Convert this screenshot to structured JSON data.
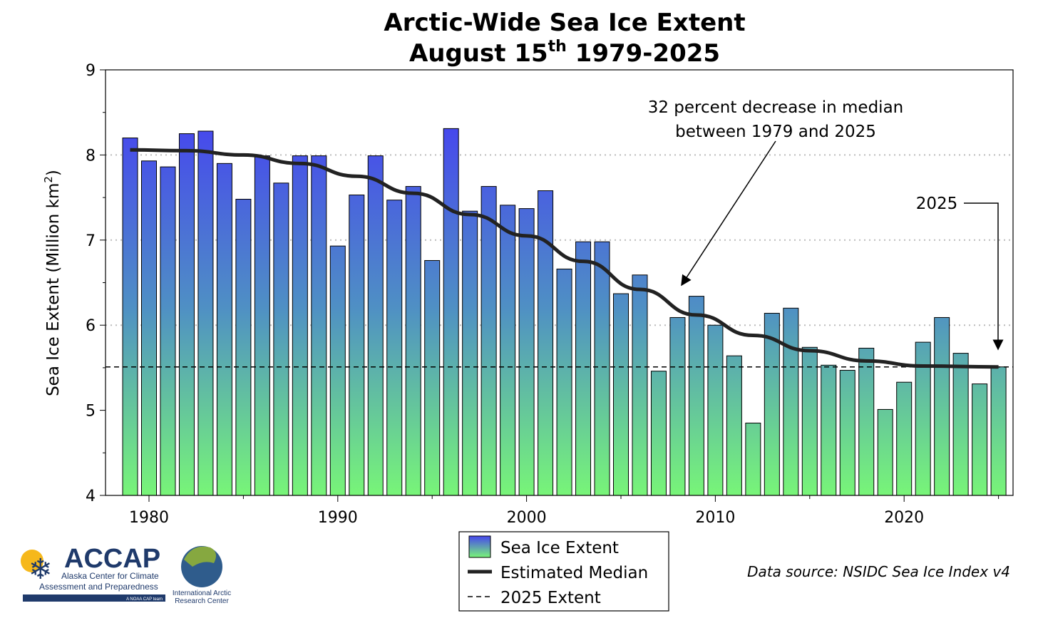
{
  "chart_data": {
    "type": "bar",
    "title": "Arctic-Wide Sea Ice Extent",
    "subtitle_prefix": "August 15",
    "subtitle_sup": "th",
    "subtitle_suffix": " 1979-2025",
    "ylabel": "Sea Ice Extent (Million km",
    "ylabel_sup": "2",
    "ylabel_end": ")",
    "ylim": [
      4,
      9
    ],
    "xlim": [
      1978,
      2026
    ],
    "yticks": [
      "4",
      "5",
      "6",
      "7",
      "8",
      "9"
    ],
    "xticks": [
      "1980",
      "1990",
      "2000",
      "2010",
      "2020"
    ],
    "x": [
      1979,
      1980,
      1981,
      1982,
      1983,
      1984,
      1985,
      1986,
      1987,
      1988,
      1989,
      1990,
      1991,
      1992,
      1993,
      1994,
      1995,
      1996,
      1997,
      1998,
      1999,
      2000,
      2001,
      2002,
      2003,
      2004,
      2005,
      2006,
      2007,
      2008,
      2009,
      2010,
      2011,
      2012,
      2013,
      2014,
      2015,
      2016,
      2017,
      2018,
      2019,
      2020,
      2021,
      2022,
      2023,
      2024,
      2025
    ],
    "series": [
      {
        "name": "Sea Ice Extent",
        "type": "bar",
        "values": [
          8.2,
          7.93,
          7.86,
          8.25,
          8.28,
          7.9,
          7.48,
          7.99,
          7.67,
          7.99,
          7.99,
          6.93,
          7.53,
          7.99,
          7.47,
          7.63,
          6.76,
          8.31,
          7.34,
          7.63,
          7.41,
          7.37,
          7.58,
          6.66,
          6.98,
          6.98,
          6.37,
          6.59,
          5.46,
          6.09,
          6.34,
          6.0,
          5.64,
          4.85,
          6.14,
          6.2,
          5.74,
          5.53,
          5.47,
          5.73,
          5.01,
          5.33,
          5.8,
          6.09,
          5.67,
          5.31,
          5.51
        ]
      },
      {
        "name": "Estimated Median",
        "type": "line",
        "x": [
          1979,
          1982,
          1985,
          1988,
          1991,
          1994,
          1997,
          2000,
          2003,
          2006,
          2009,
          2012,
          2015,
          2018,
          2021,
          2025
        ],
        "values": [
          8.06,
          8.05,
          8.0,
          7.9,
          7.75,
          7.55,
          7.3,
          7.05,
          6.75,
          6.42,
          6.12,
          5.88,
          5.7,
          5.58,
          5.52,
          5.51
        ]
      },
      {
        "name": "2025 Extent",
        "type": "hline",
        "value": 5.51
      }
    ],
    "grid_values": [
      6,
      7,
      8
    ],
    "annotations": {
      "median_line1": "32 percent decrease in median",
      "median_line2": "between 1979 and 2025",
      "year_label": "2025"
    },
    "legend": {
      "placement": "bottom-center",
      "items": [
        "Sea Ice Extent",
        "Estimated Median",
        "2025 Extent"
      ]
    },
    "source": "Data source: NSIDC Sea Ice Index v4",
    "colors": {
      "bar_top": "#4646ee",
      "bar_bottom": "#78f578",
      "line": "#222222"
    }
  },
  "logos": {
    "accap": "ACCAP",
    "accap_line1": "Alaska Center for Climate",
    "accap_line2": "Assessment and Preparedness",
    "accap_tag": "A NOAA CAP team",
    "iarc_line1": "International Arctic",
    "iarc_line2": "Research Center"
  }
}
